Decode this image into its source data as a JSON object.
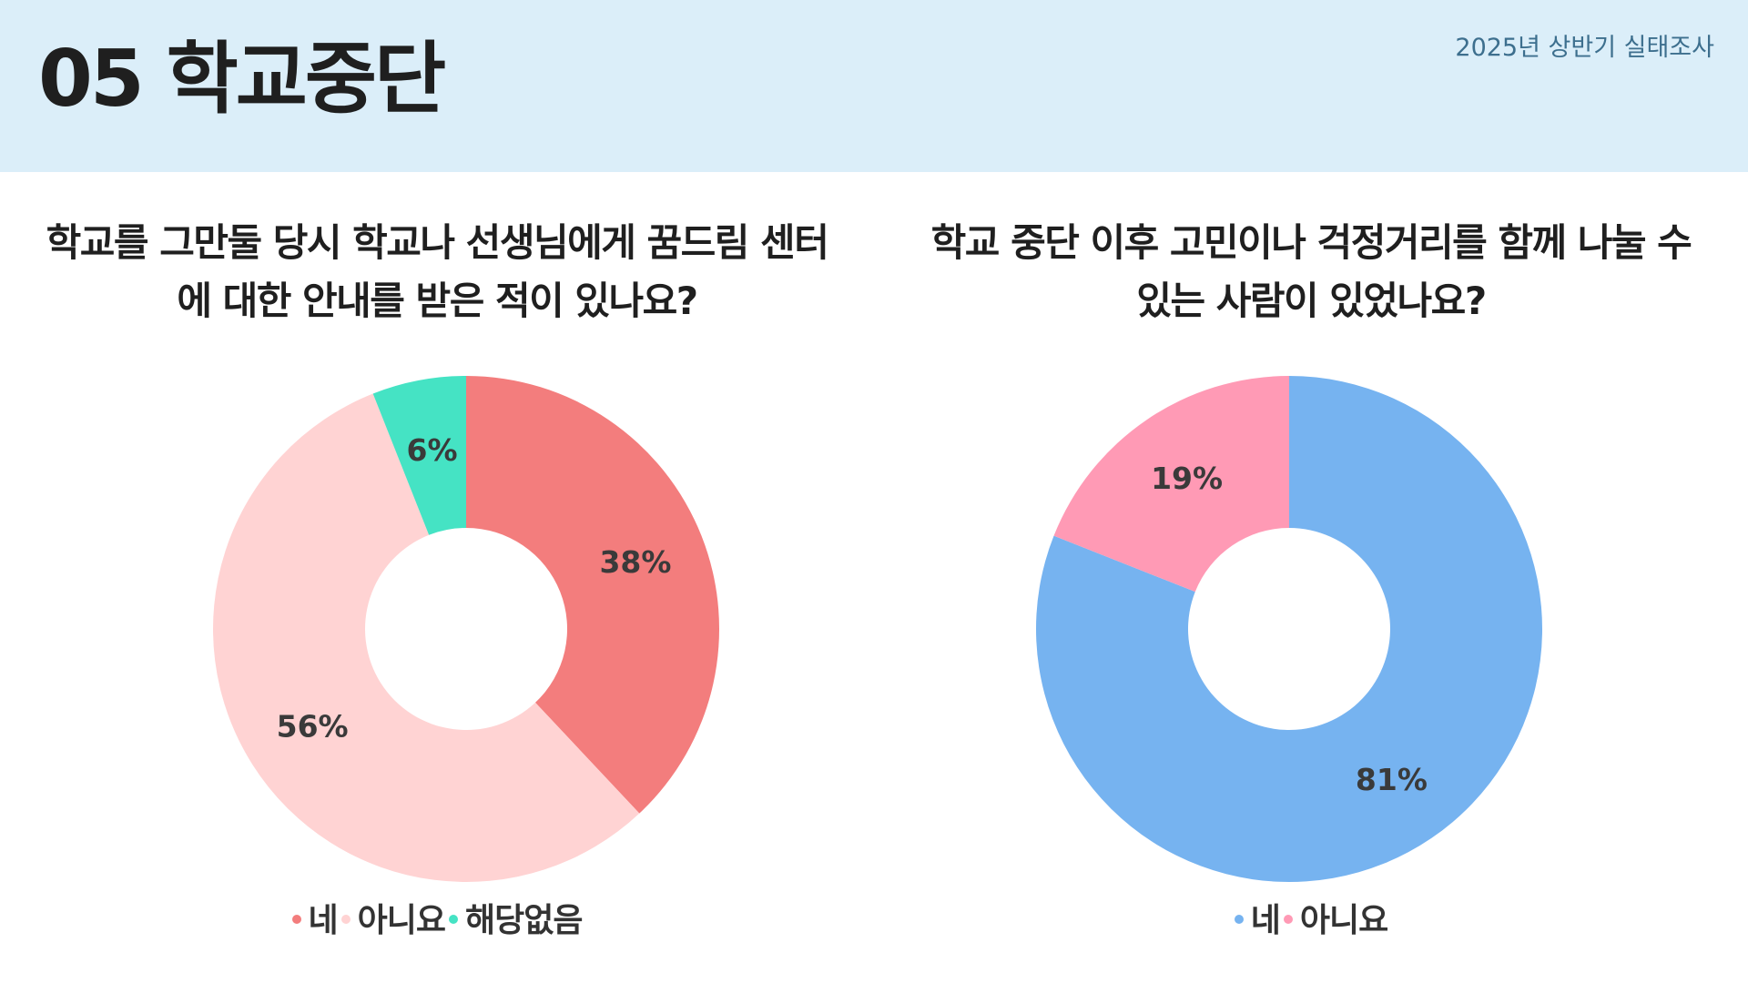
{
  "header": {
    "title": "05 학교중단",
    "survey_label": "2025년 상반기 실태조사"
  },
  "chart_data": [
    {
      "type": "pie",
      "donut": true,
      "title": "학교를 그만둘 당시 학교나 선생님에게 꿈드림 센터에 대한 안내를 받은 적이 있나요?",
      "series": [
        {
          "label": "네",
          "value": 38,
          "display": "38%",
          "color": "#f37d7d"
        },
        {
          "label": "아니요",
          "value": 56,
          "display": "56%",
          "color": "#ffd3d3"
        },
        {
          "label": "해당없음",
          "value": 6,
          "display": "6%",
          "color": "#45e3c4"
        }
      ],
      "legend_position": "bottom"
    },
    {
      "type": "pie",
      "donut": true,
      "title": "학교 중단 이후 고민이나 걱정거리를 함께 나눌 수 있는 사람이 있었나요?",
      "series": [
        {
          "label": "네",
          "value": 81,
          "display": "81%",
          "color": "#76b3f0"
        },
        {
          "label": "아니요",
          "value": 19,
          "display": "19%",
          "color": "#ff9ab5"
        }
      ],
      "legend_position": "bottom"
    }
  ]
}
